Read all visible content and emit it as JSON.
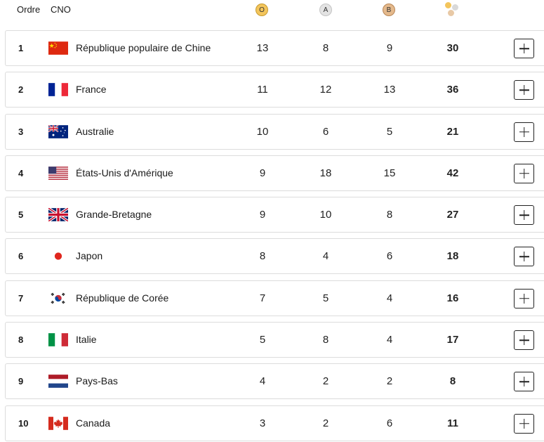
{
  "header": {
    "rank_label": "Ordre",
    "noc_label": "CNO",
    "gold_label": "O",
    "silver_label": "A",
    "bronze_label": "B",
    "total_icon": "medals-total-icon"
  },
  "colors": {
    "gold": "#f3c55c",
    "silver": "#e3e3e3",
    "bronze": "#e4b98c"
  },
  "rows": [
    {
      "rank": "1",
      "flag": "flag-china",
      "country": "République populaire de Chine",
      "gold": "13",
      "silver": "8",
      "bronze": "9",
      "total": "30"
    },
    {
      "rank": "2",
      "flag": "flag-france",
      "country": "France",
      "gold": "11",
      "silver": "12",
      "bronze": "13",
      "total": "36"
    },
    {
      "rank": "3",
      "flag": "flag-australia",
      "country": "Australie",
      "gold": "10",
      "silver": "6",
      "bronze": "5",
      "total": "21"
    },
    {
      "rank": "4",
      "flag": "flag-usa",
      "country": "États-Unis d'Amérique",
      "gold": "9",
      "silver": "18",
      "bronze": "15",
      "total": "42"
    },
    {
      "rank": "5",
      "flag": "flag-great-britain",
      "country": "Grande-Bretagne",
      "gold": "9",
      "silver": "10",
      "bronze": "8",
      "total": "27"
    },
    {
      "rank": "6",
      "flag": "flag-japan",
      "country": "Japon",
      "gold": "8",
      "silver": "4",
      "bronze": "6",
      "total": "18"
    },
    {
      "rank": "7",
      "flag": "flag-korea",
      "country": "République de Corée",
      "gold": "7",
      "silver": "5",
      "bronze": "4",
      "total": "16"
    },
    {
      "rank": "8",
      "flag": "flag-italy",
      "country": "Italie",
      "gold": "5",
      "silver": "8",
      "bronze": "4",
      "total": "17"
    },
    {
      "rank": "9",
      "flag": "flag-netherlands",
      "country": "Pays-Bas",
      "gold": "4",
      "silver": "2",
      "bronze": "2",
      "total": "8"
    },
    {
      "rank": "10",
      "flag": "flag-canada",
      "country": "Canada",
      "gold": "3",
      "silver": "2",
      "bronze": "6",
      "total": "11"
    }
  ]
}
